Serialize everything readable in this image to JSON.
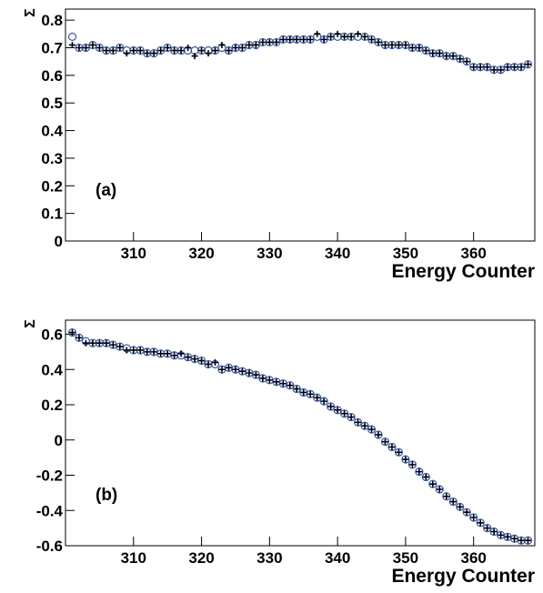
{
  "chart_data": [
    {
      "type": "scatter",
      "annotation": "(a)",
      "x_label": "Energy Counter",
      "y_label": "Σ",
      "xlim": [
        300,
        369
      ],
      "ylim": [
        0,
        0.84
      ],
      "xticks": [
        310,
        320,
        330,
        340,
        350,
        360
      ],
      "yticks": [
        0,
        0.1,
        0.2,
        0.3,
        0.4,
        0.5,
        0.6,
        0.7,
        0.8
      ],
      "x": [
        301,
        302,
        303,
        304,
        305,
        306,
        307,
        308,
        309,
        310,
        311,
        312,
        313,
        314,
        315,
        316,
        317,
        318,
        319,
        320,
        321,
        322,
        323,
        324,
        325,
        326,
        327,
        328,
        329,
        330,
        331,
        332,
        333,
        334,
        335,
        336,
        337,
        338,
        339,
        340,
        341,
        342,
        343,
        344,
        345,
        346,
        347,
        348,
        349,
        350,
        351,
        352,
        353,
        354,
        355,
        356,
        357,
        358,
        359,
        360,
        361,
        362,
        363,
        364,
        365,
        366,
        367,
        368
      ],
      "series": [
        {
          "marker": "circle",
          "color": "#3a5aa8",
          "values": [
            0.74,
            0.7,
            0.7,
            0.71,
            0.7,
            0.69,
            0.69,
            0.7,
            0.69,
            0.69,
            0.69,
            0.68,
            0.68,
            0.69,
            0.7,
            0.69,
            0.69,
            0.69,
            0.69,
            0.69,
            0.69,
            0.69,
            0.7,
            0.69,
            0.7,
            0.7,
            0.71,
            0.71,
            0.72,
            0.72,
            0.72,
            0.73,
            0.73,
            0.73,
            0.73,
            0.73,
            0.74,
            0.73,
            0.74,
            0.74,
            0.74,
            0.74,
            0.74,
            0.74,
            0.73,
            0.72,
            0.71,
            0.71,
            0.71,
            0.71,
            0.7,
            0.7,
            0.69,
            0.68,
            0.68,
            0.67,
            0.67,
            0.66,
            0.65,
            0.63,
            0.63,
            0.63,
            0.62,
            0.62,
            0.63,
            0.63,
            0.63,
            0.64
          ]
        },
        {
          "marker": "cross",
          "color": "#000000",
          "values": [
            0.71,
            0.7,
            0.7,
            0.71,
            0.7,
            0.69,
            0.69,
            0.7,
            0.68,
            0.69,
            0.69,
            0.68,
            0.68,
            0.69,
            0.7,
            0.69,
            0.69,
            0.7,
            0.67,
            0.69,
            0.68,
            0.69,
            0.71,
            0.69,
            0.7,
            0.7,
            0.71,
            0.71,
            0.72,
            0.72,
            0.72,
            0.73,
            0.73,
            0.73,
            0.73,
            0.73,
            0.75,
            0.73,
            0.74,
            0.75,
            0.74,
            0.74,
            0.75,
            0.74,
            0.73,
            0.72,
            0.71,
            0.71,
            0.71,
            0.71,
            0.7,
            0.7,
            0.69,
            0.68,
            0.68,
            0.67,
            0.67,
            0.66,
            0.65,
            0.63,
            0.63,
            0.63,
            0.62,
            0.62,
            0.63,
            0.63,
            0.63,
            0.64
          ]
        }
      ]
    },
    {
      "type": "scatter",
      "annotation": "(b)",
      "x_label": "Energy Counter",
      "y_label": "Σ",
      "xlim": [
        300,
        369
      ],
      "ylim": [
        -0.6,
        0.68
      ],
      "xticks": [
        310,
        320,
        330,
        340,
        350,
        360
      ],
      "yticks": [
        -0.6,
        -0.4,
        -0.2,
        0,
        0.2,
        0.4,
        0.6
      ],
      "x": [
        301,
        302,
        303,
        304,
        305,
        306,
        307,
        308,
        309,
        310,
        311,
        312,
        313,
        314,
        315,
        316,
        317,
        318,
        319,
        320,
        321,
        322,
        323,
        324,
        325,
        326,
        327,
        328,
        329,
        330,
        331,
        332,
        333,
        334,
        335,
        336,
        337,
        338,
        339,
        340,
        341,
        342,
        343,
        344,
        345,
        346,
        347,
        348,
        349,
        350,
        351,
        352,
        353,
        354,
        355,
        356,
        357,
        358,
        359,
        360,
        361,
        362,
        363,
        364,
        365,
        366,
        367,
        368
      ],
      "series": [
        {
          "marker": "circle",
          "color": "#3a5aa8",
          "values": [
            0.61,
            0.58,
            0.56,
            0.55,
            0.55,
            0.55,
            0.54,
            0.53,
            0.52,
            0.51,
            0.51,
            0.5,
            0.5,
            0.49,
            0.49,
            0.48,
            0.48,
            0.47,
            0.46,
            0.45,
            0.43,
            0.43,
            0.4,
            0.41,
            0.4,
            0.39,
            0.38,
            0.37,
            0.35,
            0.34,
            0.33,
            0.32,
            0.31,
            0.29,
            0.27,
            0.26,
            0.24,
            0.22,
            0.19,
            0.17,
            0.15,
            0.13,
            0.1,
            0.08,
            0.06,
            0.03,
            -0.01,
            -0.04,
            -0.07,
            -0.11,
            -0.14,
            -0.18,
            -0.21,
            -0.25,
            -0.28,
            -0.32,
            -0.35,
            -0.38,
            -0.41,
            -0.44,
            -0.47,
            -0.5,
            -0.52,
            -0.54,
            -0.55,
            -0.56,
            -0.57,
            -0.57
          ]
        },
        {
          "marker": "cross",
          "color": "#000000",
          "values": [
            0.61,
            0.58,
            0.55,
            0.55,
            0.55,
            0.55,
            0.54,
            0.53,
            0.51,
            0.51,
            0.51,
            0.5,
            0.5,
            0.49,
            0.49,
            0.48,
            0.49,
            0.47,
            0.46,
            0.45,
            0.43,
            0.44,
            0.4,
            0.41,
            0.4,
            0.39,
            0.38,
            0.37,
            0.35,
            0.34,
            0.33,
            0.32,
            0.31,
            0.29,
            0.27,
            0.26,
            0.24,
            0.22,
            0.19,
            0.17,
            0.15,
            0.13,
            0.1,
            0.08,
            0.06,
            0.03,
            -0.01,
            -0.04,
            -0.07,
            -0.11,
            -0.14,
            -0.18,
            -0.21,
            -0.25,
            -0.28,
            -0.32,
            -0.35,
            -0.38,
            -0.41,
            -0.44,
            -0.47,
            -0.5,
            -0.52,
            -0.54,
            -0.55,
            -0.56,
            -0.57,
            -0.57
          ]
        }
      ]
    }
  ]
}
